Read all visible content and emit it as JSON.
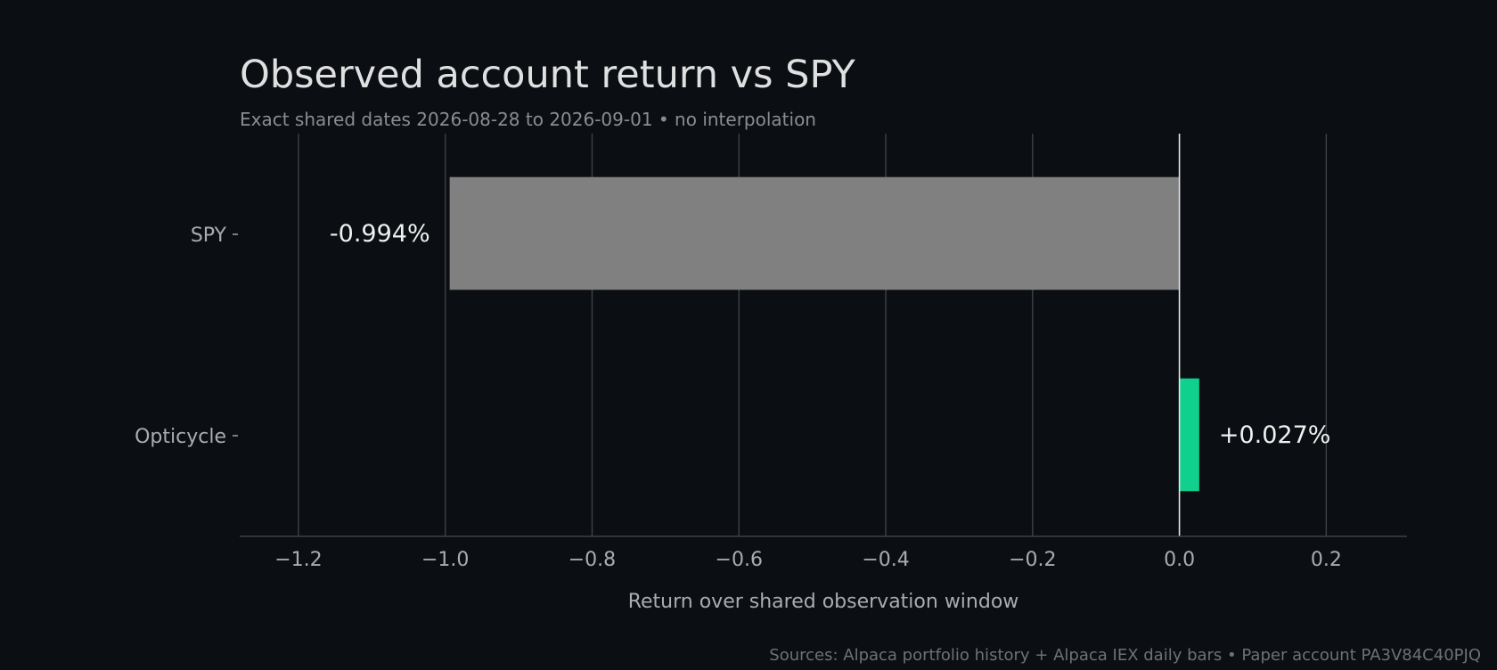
{
  "chart_data": {
    "type": "bar",
    "orientation": "horizontal",
    "title": "Observed account return vs SPY",
    "subtitle": "Exact shared dates 2026-08-28 to 2026-09-01 • no interpolation",
    "xlabel": "Return over shared observation window",
    "ylabel": "",
    "categories": [
      "SPY",
      "Opticycle"
    ],
    "values": [
      -0.994,
      0.027
    ],
    "value_labels": [
      "-0.994%",
      "+0.027%"
    ],
    "xlim": [
      -1.28,
      0.31
    ],
    "xticks": [
      -1.2,
      -1.0,
      -0.8,
      -0.6,
      -0.4,
      -0.2,
      0.0,
      0.2
    ],
    "xtick_labels": [
      "−1.2",
      "−1.0",
      "−0.8",
      "−0.6",
      "−0.4",
      "−0.2",
      "0.0",
      "0.2"
    ],
    "grid": "x",
    "footer": "Sources: Alpaca portfolio history + Alpaca IEX daily bars • Paper account PA3V84C40PJQ",
    "colors": {
      "background": "#0b0e12",
      "SPY": "#808080",
      "Opticycle": "#10d08d",
      "grid": "#3e4145",
      "zero_line": "#e6e6e6",
      "title": "#e0e0e0",
      "subtitle": "#8a8d91",
      "tick": "#a9acb0",
      "value_label": "#f0f0f0",
      "footer": "#6e7175"
    }
  }
}
